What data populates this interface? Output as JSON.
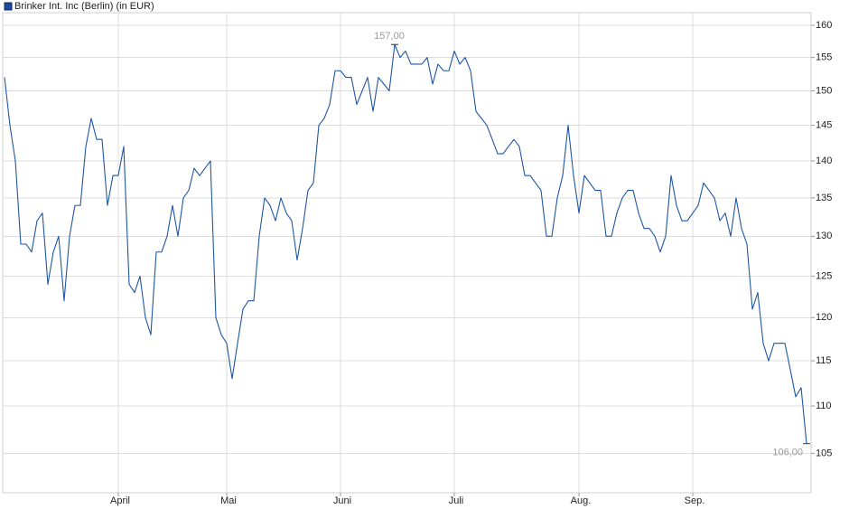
{
  "chart_data": {
    "type": "line",
    "log_scale": true,
    "grid": true,
    "ylim": [
      101,
      162
    ],
    "yticks": [
      105,
      110,
      115,
      120,
      125,
      130,
      135,
      140,
      145,
      150,
      155,
      160
    ],
    "categories": [
      null,
      null,
      null,
      null,
      null,
      null,
      null,
      null,
      null,
      null,
      null,
      null,
      null,
      null,
      null,
      null,
      null,
      null,
      null,
      null,
      null,
      "April",
      null,
      null,
      null,
      null,
      null,
      null,
      null,
      null,
      null,
      null,
      null,
      null,
      null,
      null,
      null,
      null,
      null,
      null,
      null,
      "Mai",
      null,
      null,
      null,
      null,
      null,
      null,
      null,
      null,
      null,
      null,
      null,
      null,
      null,
      null,
      null,
      null,
      null,
      null,
      null,
      null,
      "Juni",
      null,
      null,
      null,
      null,
      null,
      null,
      null,
      null,
      null,
      null,
      null,
      null,
      null,
      null,
      null,
      null,
      null,
      null,
      null,
      null,
      "Juli",
      null,
      null,
      null,
      null,
      null,
      null,
      null,
      null,
      null,
      null,
      null,
      null,
      null,
      null,
      null,
      null,
      null,
      null,
      null,
      null,
      null,
      null,
      "Aug.",
      null,
      null,
      null,
      null,
      null,
      null,
      null,
      null,
      null,
      null,
      null,
      null,
      null,
      null,
      null,
      null,
      null,
      null,
      null,
      null,
      "Sep.",
      null,
      null,
      null,
      null,
      null,
      null,
      null,
      null,
      null,
      null,
      null,
      null,
      null,
      null,
      null,
      null,
      null,
      null,
      null,
      null,
      null
    ],
    "series": [
      {
        "name": "Brinker Int. Inc (Berlin) (in EUR)",
        "color": "#1f56a3",
        "values": [
          152,
          145,
          140,
          129,
          129,
          128,
          132,
          133,
          124,
          128,
          130,
          122,
          130,
          134,
          134,
          142,
          146,
          143,
          143,
          134,
          138,
          138,
          142,
          124,
          123,
          125,
          120,
          118,
          128,
          128,
          130,
          134,
          130,
          135,
          136,
          139,
          138,
          139,
          140,
          120,
          118,
          117,
          113,
          117,
          121,
          122,
          122,
          130,
          135,
          134,
          132,
          135,
          133,
          132,
          127,
          131,
          136,
          137,
          145,
          146,
          148,
          153,
          153,
          152,
          152,
          148,
          150,
          152,
          147,
          152,
          151,
          150,
          157,
          155,
          156,
          154,
          154,
          154,
          155,
          151,
          154,
          153,
          153,
          156,
          154,
          155,
          153,
          147,
          146,
          145,
          143,
          141,
          141,
          142,
          143,
          142,
          138,
          138,
          137,
          136,
          130,
          130,
          135,
          138,
          145,
          138,
          133,
          138,
          137,
          136,
          136,
          130,
          130,
          133,
          135,
          136,
          136,
          133,
          131,
          131,
          130,
          128,
          130,
          138,
          134,
          132,
          132,
          133,
          134,
          137,
          136,
          135,
          132,
          133,
          130,
          135,
          131,
          129,
          121,
          123,
          117,
          115,
          117,
          117,
          117,
          114,
          111,
          112,
          106
        ],
        "value_labels": [
          null,
          null,
          null,
          null,
          null,
          null,
          null,
          null,
          null,
          null,
          null,
          null,
          null,
          null,
          null,
          null,
          null,
          null,
          null,
          null,
          null,
          null,
          null,
          null,
          null,
          null,
          null,
          null,
          null,
          null,
          null,
          null,
          null,
          null,
          null,
          null,
          null,
          null,
          null,
          null,
          null,
          null,
          null,
          null,
          null,
          null,
          null,
          null,
          null,
          null,
          null,
          null,
          null,
          null,
          null,
          null,
          null,
          null,
          null,
          null,
          null,
          null,
          null,
          null,
          null,
          null,
          null,
          null,
          null,
          null,
          null,
          null,
          "157,00",
          null,
          null,
          null,
          null,
          null,
          null,
          null,
          null,
          null,
          null,
          null,
          null,
          null,
          null,
          null,
          null,
          null,
          null,
          null,
          null,
          null,
          null,
          null,
          null,
          null,
          null,
          null,
          null,
          null,
          null,
          null,
          null,
          null,
          null,
          null,
          null,
          null,
          null,
          null,
          null,
          null,
          null,
          null,
          null,
          null,
          null,
          null,
          null,
          null,
          null,
          null,
          null,
          null,
          null,
          null,
          null,
          null,
          null,
          null,
          null,
          null,
          null,
          null,
          null,
          null,
          null,
          null,
          null,
          null,
          null,
          null,
          null,
          null,
          null,
          null,
          "106,00"
        ]
      }
    ]
  }
}
